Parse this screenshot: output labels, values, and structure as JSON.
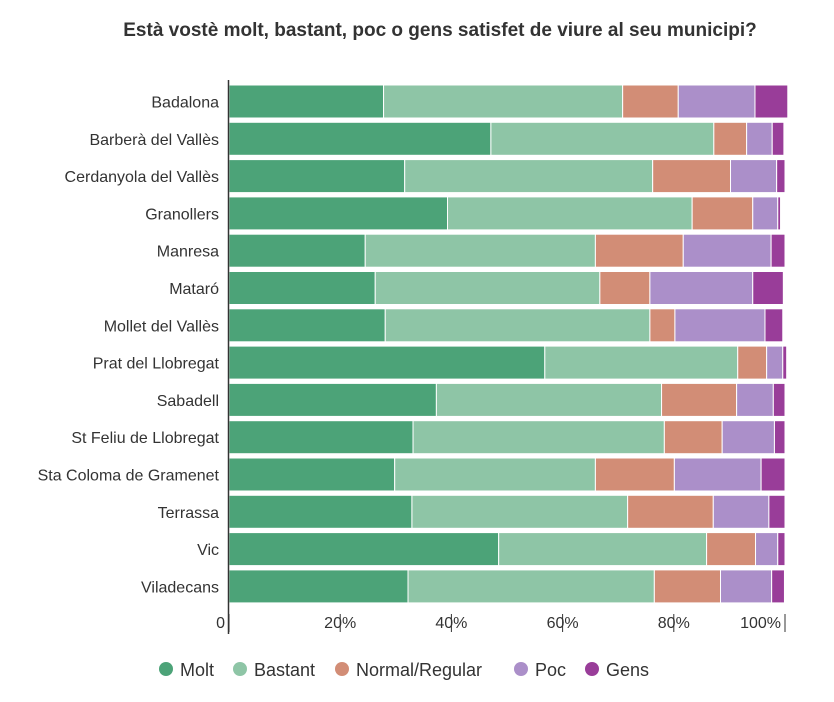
{
  "chart_data": {
    "type": "bar",
    "orientation": "horizontal",
    "stacked": true,
    "title": "Està vostè molt, bastant, poc o gens satisfet de viure al seu municipi?",
    "xlabel": "",
    "ylabel": "",
    "xlim": [
      0,
      100
    ],
    "x_ticks": [
      "0",
      "20%",
      "40%",
      "60%",
      "80%",
      "100%"
    ],
    "grid": false,
    "legend_position": "bottom",
    "categories": [
      "Badalona",
      "Barberà del Vallès",
      "Cerdanyola del Vallès",
      "Granollers",
      "Manresa",
      "Mataró",
      "Mollet del Vallès",
      "Prat del Llobregat",
      "Sabadell",
      "St Feliu de Llobregat",
      "Sta Coloma de Gramenet",
      "Terrassa",
      "Vic",
      "Viladecans"
    ],
    "series": [
      {
        "name": "Molt",
        "color": "#4ca378",
        "values": [
          27.8,
          47.1,
          31.6,
          39.3,
          24.5,
          26.3,
          28.1,
          56.8,
          37.3,
          33.1,
          29.8,
          32.9,
          48.5,
          32.2
        ]
      },
      {
        "name": "Bastant",
        "color": "#8ec5a6",
        "values": [
          43.0,
          40.1,
          44.6,
          44.0,
          41.4,
          40.4,
          47.6,
          34.7,
          40.5,
          45.2,
          36.1,
          38.8,
          37.4,
          44.3
        ]
      },
      {
        "name": "Normal/Regular",
        "color": "#d28d76",
        "values": [
          10.0,
          5.9,
          14.0,
          10.9,
          15.8,
          9.0,
          4.5,
          5.2,
          13.5,
          10.4,
          14.2,
          15.4,
          8.8,
          11.9
        ]
      },
      {
        "name": "Poc",
        "color": "#ab8fc9",
        "values": [
          13.8,
          4.6,
          8.3,
          4.5,
          15.8,
          18.5,
          16.2,
          2.9,
          6.6,
          9.4,
          15.6,
          10.0,
          4.0,
          9.2
        ]
      },
      {
        "name": "Gens",
        "color": "#993d99",
        "values": [
          5.9,
          2.1,
          1.5,
          0.5,
          2.5,
          5.5,
          3.2,
          0.7,
          2.1,
          1.9,
          4.3,
          2.9,
          1.3,
          2.3
        ]
      }
    ]
  }
}
